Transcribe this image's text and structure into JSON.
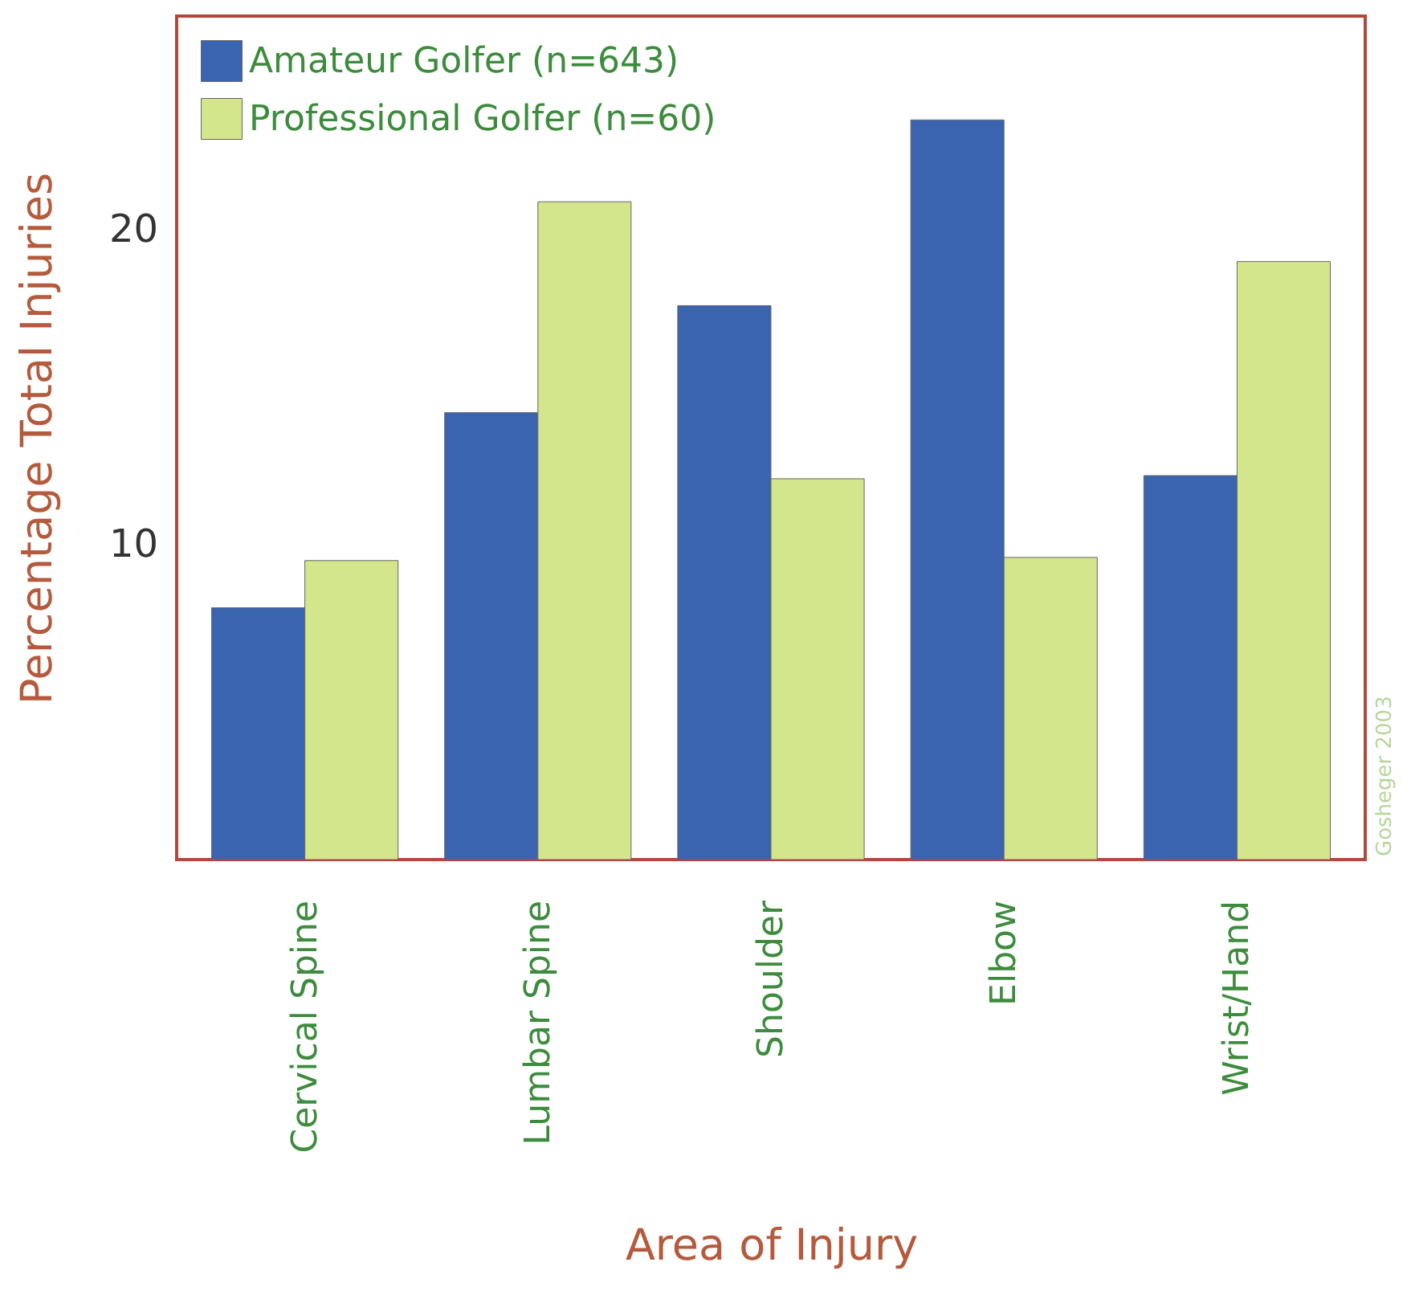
{
  "chart_data": {
    "type": "bar",
    "xlabel": "Area of Injury",
    "ylabel": "Percentage Total Injuries",
    "categories": [
      "Cervical Spine",
      "Lumbar Spine",
      "Shoulder",
      "Elbow",
      "Wrist/Hand"
    ],
    "series": [
      {
        "name": "Amateur Golfer (n=643)",
        "color": "#3a64b0",
        "values": [
          8.0,
          14.2,
          17.6,
          23.5,
          12.2
        ]
      },
      {
        "name": "Professional Golfer (n=60)",
        "color": "#d4e68c",
        "values": [
          9.5,
          20.9,
          12.1,
          9.6,
          19.0
        ]
      }
    ],
    "ylim": [
      0,
      26.8
    ],
    "yticks": [
      10,
      20
    ],
    "grid": false,
    "legend": "top left",
    "annotations": [
      "Gosheger 2003"
    ]
  }
}
